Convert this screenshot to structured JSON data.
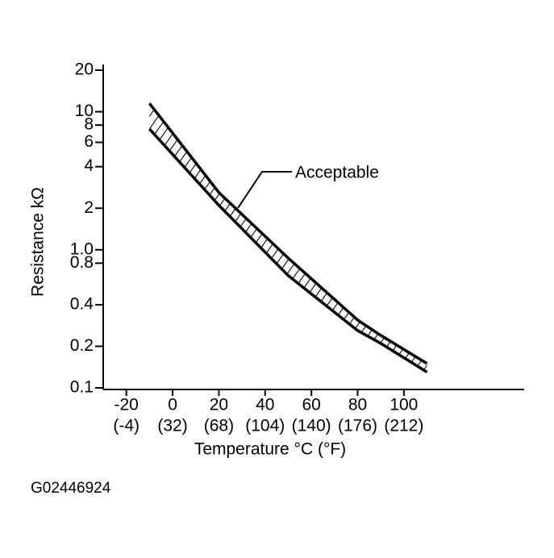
{
  "chart_data": {
    "type": "line",
    "xlabel": "Temperature °C (°F)",
    "ylabel": "Resistance kΩ",
    "annotation": "Acceptable",
    "x": [
      -10,
      20,
      50,
      80,
      90,
      110
    ],
    "series": [
      {
        "color": "#000000",
        "values": [
          11.5,
          2.6,
          0.87,
          0.31,
          0.24,
          0.15
        ]
      },
      {
        "color": "#000000",
        "values": [
          7.5,
          2.1,
          0.65,
          0.26,
          0.21,
          0.13
        ]
      }
    ],
    "xlim": [
      -30,
      152
    ],
    "xticks": [
      -20,
      0,
      20,
      40,
      60,
      80,
      100
    ],
    "xtick_secondary_labels": [
      "(-4)",
      "(32)",
      "(68)",
      "(104)",
      "(140)",
      "(176)",
      "(212)"
    ],
    "ylim": [
      0.1,
      20
    ],
    "ylog": true,
    "yticks": [
      0.1,
      0.2,
      0.4,
      0.8,
      {
        "value": 1,
        "label": "1.0"
      },
      2,
      4,
      6,
      8,
      10,
      20
    ],
    "grid": false,
    "hatch_between_series": true
  },
  "figure_code": "G02446924"
}
